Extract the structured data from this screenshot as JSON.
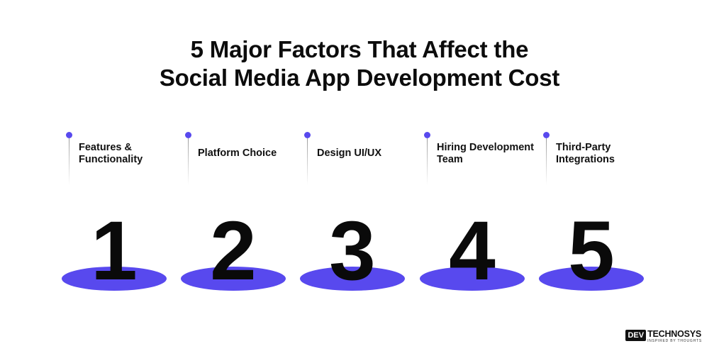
{
  "title": {
    "line1": "5 Major Factors That Affect the",
    "line2": "Social Media App Development Cost"
  },
  "colors": {
    "accent": "#5849ee",
    "text": "#111111"
  },
  "factors": [
    {
      "number": "1",
      "label": "Features & Functionality"
    },
    {
      "number": "2",
      "label": "Platform Choice"
    },
    {
      "number": "3",
      "label": "Design UI/UX"
    },
    {
      "number": "4",
      "label": "Hiring Development Team"
    },
    {
      "number": "5",
      "label": "Third-Party Integrations"
    }
  ],
  "logo": {
    "mark": "DEV",
    "name": "TECHNOSYS",
    "tagline": "INSPIRED BY THOUGHTS"
  }
}
